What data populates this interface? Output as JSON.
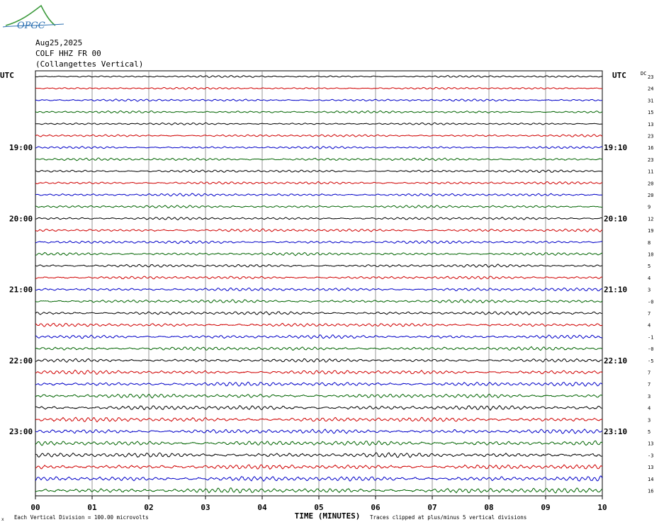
{
  "logo": {
    "text": "OPGC",
    "color": "#2a6fb0",
    "accent": "#3c9a3c"
  },
  "header": {
    "date": "Aug25,2025",
    "station": "COLF HHZ FR 00",
    "station_name": "(Collangettes Vertical)"
  },
  "footer": {
    "scale_note": "Each Vertical Division =  100.00 microvolts",
    "clip_note": "Traces clipped at plus/minus 5 vertical divisions",
    "corner_mark": "x"
  },
  "chart_data": {
    "type": "line",
    "xlabel": "TIME (MINUTES)",
    "x_ticks": [
      "00",
      "01",
      "02",
      "03",
      "04",
      "05",
      "06",
      "07",
      "08",
      "09",
      "10"
    ],
    "xlim": [
      0,
      10
    ],
    "left_axis_label": "UTC",
    "right_axis_label": "UTC",
    "dc_label": "DC",
    "dc_first": "23",
    "left_hour_labels": [
      {
        "row": 6,
        "label": "19:00"
      },
      {
        "row": 12,
        "label": "20:00"
      },
      {
        "row": 18,
        "label": "21:00"
      },
      {
        "row": 24,
        "label": "22:00"
      },
      {
        "row": 30,
        "label": "23:00"
      }
    ],
    "right_hour_labels": [
      {
        "row": 6,
        "label": "19:10"
      },
      {
        "row": 12,
        "label": "20:10"
      },
      {
        "row": 18,
        "label": "21:10"
      },
      {
        "row": 24,
        "label": "22:10"
      },
      {
        "row": 30,
        "label": "23:10"
      }
    ],
    "dc_offsets": [
      "24",
      "31",
      "15",
      "13",
      "23",
      "16",
      "23",
      "11",
      "20",
      "20",
      "9",
      "12",
      "19",
      "8",
      "10",
      "5",
      "4",
      "3",
      "-0",
      "7",
      "4",
      "-1",
      "-0",
      "-5",
      "7",
      "7",
      "3",
      "4",
      "3",
      "5",
      "13",
      "-3",
      "13",
      "14",
      "16"
    ],
    "trace_colors": [
      "#000000",
      "#d00000",
      "#0000c8",
      "#006400"
    ],
    "trace_count": 36,
    "minutes_per_row": 10,
    "row_amplitude_level": [
      0.35,
      0.35,
      0.4,
      0.4,
      0.35,
      0.4,
      0.4,
      0.45,
      0.45,
      0.45,
      0.45,
      0.45,
      0.45,
      0.5,
      0.5,
      0.5,
      0.5,
      0.5,
      0.55,
      0.55,
      0.55,
      0.6,
      0.6,
      0.6,
      0.6,
      0.7,
      0.7,
      0.7,
      0.75,
      0.75,
      0.75,
      0.8,
      0.8,
      0.8,
      0.85,
      0.85
    ]
  }
}
